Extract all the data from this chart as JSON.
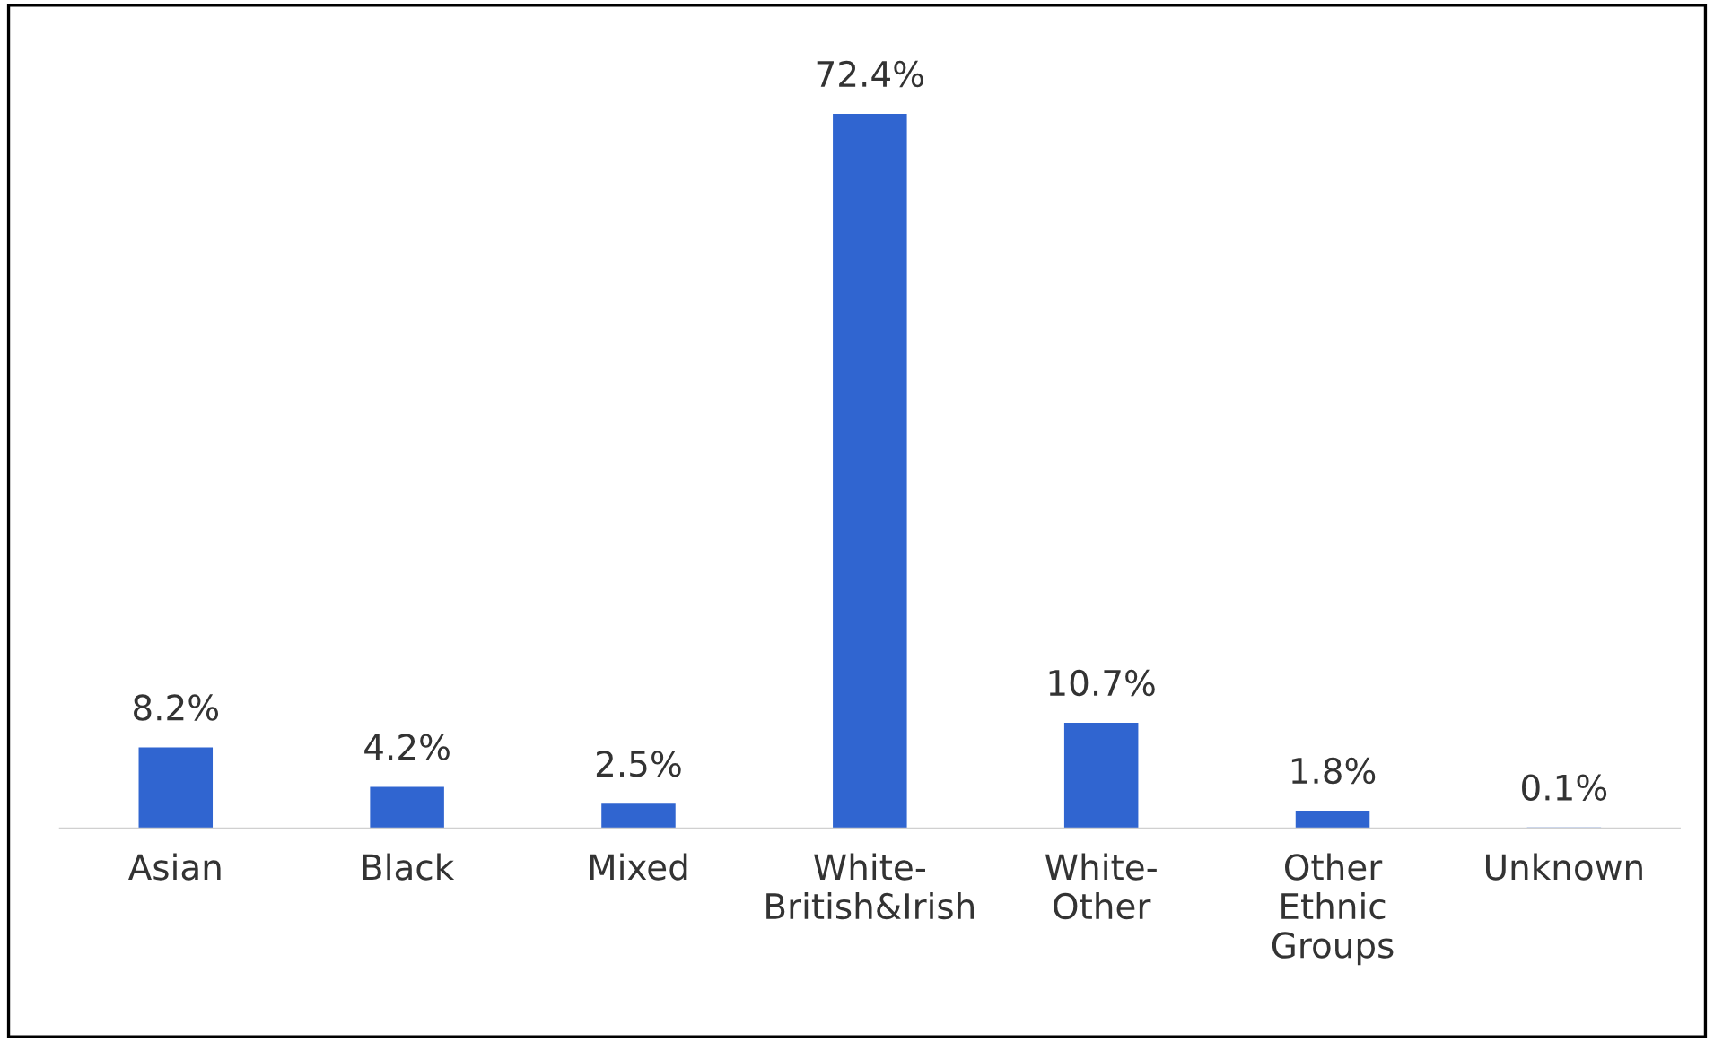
{
  "chart_data": {
    "type": "bar",
    "categories": [
      "Asian",
      "Black",
      "Mixed",
      "White-\nBritish&Irish",
      "White-\nOther",
      "Other\nEthnic\nGroups",
      "Unknown"
    ],
    "values": [
      8.2,
      4.2,
      2.5,
      72.4,
      10.7,
      1.8,
      0.1
    ],
    "value_labels": [
      "8.2%",
      "4.2%",
      "2.5%",
      "72.4%",
      "10.7%",
      "1.8%",
      "0.1%"
    ],
    "color": "#3065d0",
    "tick_labels": "x",
    "grid": false,
    "legend": false
  }
}
